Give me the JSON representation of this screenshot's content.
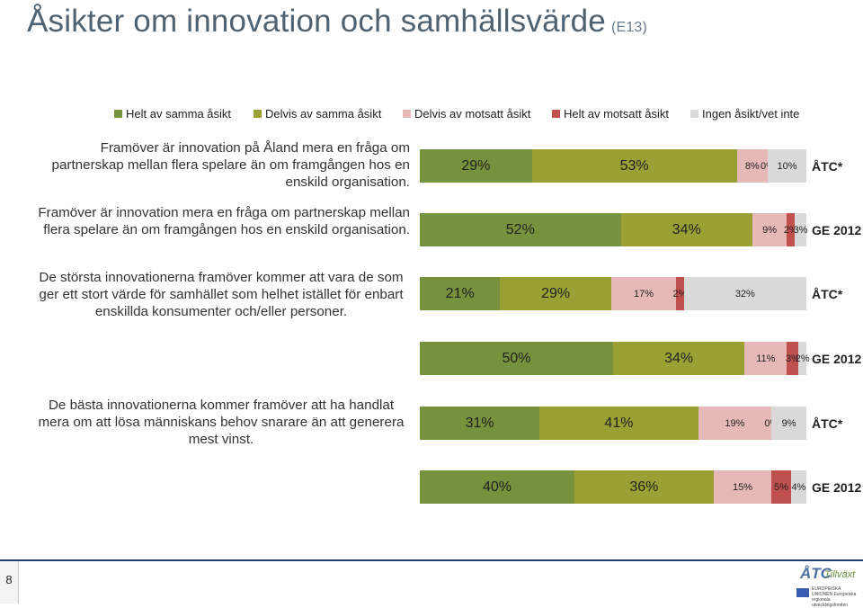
{
  "title": "Åsikter om innovation och samhällsvärde",
  "title_code": "(E13)",
  "colors": {
    "helt_samma": "#76923c",
    "delvis_samma": "#9aa033",
    "delvis_motsatt": "#e6b9b8",
    "helt_motsatt": "#c0504d",
    "ingen": "#d9d9d9"
  },
  "legend": [
    {
      "label": "Helt av samma åsikt",
      "color": "#76923c"
    },
    {
      "label": "Delvis av samma åsikt",
      "color": "#9aa033"
    },
    {
      "label": "Delvis av motsatt åsikt",
      "color": "#e6b9b8"
    },
    {
      "label": "Helt av motsatt åsikt",
      "color": "#c0504d"
    },
    {
      "label": "Ingen åsikt/vet inte",
      "color": "#d9d9d9"
    }
  ],
  "questions": [
    {
      "text": "Framöver är innovation på Åland mera en fråga om partnerskap mellan flera spelare än om framgången hos en enskild organisation."
    },
    {
      "text": "Framöver är innovation mera en fråga om partnerskap mellan flera spelare än om framgången hos en enskild organisation."
    },
    {
      "text": "De största innovationerna framöver kommer att vara de som ger ett stort värde för samhället som helhet istället för enbart enskillda konsumenter och/eller personer."
    },
    {
      "text": "De bästa innovationerna kommer framöver att ha handlat mera om att lösa människans behov snarare än att generera mest vinst."
    }
  ],
  "chart_data": {
    "type": "bar",
    "stacked": true,
    "orientation": "horizontal",
    "categories": [
      "ÅTC*",
      "GE 2012",
      "ÅTC*",
      "GE 2012",
      "ÅTC*",
      "GE 2012"
    ],
    "series": [
      {
        "name": "Helt av samma åsikt",
        "values": [
          29,
          52,
          21,
          50,
          31,
          40
        ],
        "labels": [
          "29%",
          "52%",
          "21%",
          "50%",
          "31%",
          "40%"
        ]
      },
      {
        "name": "Delvis av samma åsikt",
        "values": [
          53,
          34,
          29,
          34,
          41,
          36
        ],
        "labels": [
          "53%",
          "34%",
          "29%",
          "34%",
          "41%",
          "36%"
        ]
      },
      {
        "name": "Delvis av motsatt åsikt",
        "values": [
          8,
          9,
          17,
          11,
          19,
          15
        ],
        "labels": [
          "8%",
          "9%",
          "17%",
          "11%",
          "19%",
          "15%"
        ]
      },
      {
        "name": "Helt av motsatt åsikt",
        "values": [
          0,
          2,
          2,
          3,
          0,
          5
        ],
        "labels": [
          "0%",
          "2%",
          "2%",
          "3%",
          "0%",
          "5%"
        ]
      },
      {
        "name": "Ingen åsikt/vet inte",
        "values": [
          10,
          3,
          32,
          2,
          9,
          4
        ],
        "labels": [
          "10%",
          "3%",
          "32%",
          "2%",
          "9%",
          "4%"
        ]
      }
    ],
    "xlim": [
      0,
      100
    ]
  },
  "page_number": "8",
  "logo": {
    "text": "ÅTC",
    "sub": "Tillväxt",
    "eu_text": "EUROPEISKA UNIONEN Europeiska regionala utvecklingsfonden"
  }
}
